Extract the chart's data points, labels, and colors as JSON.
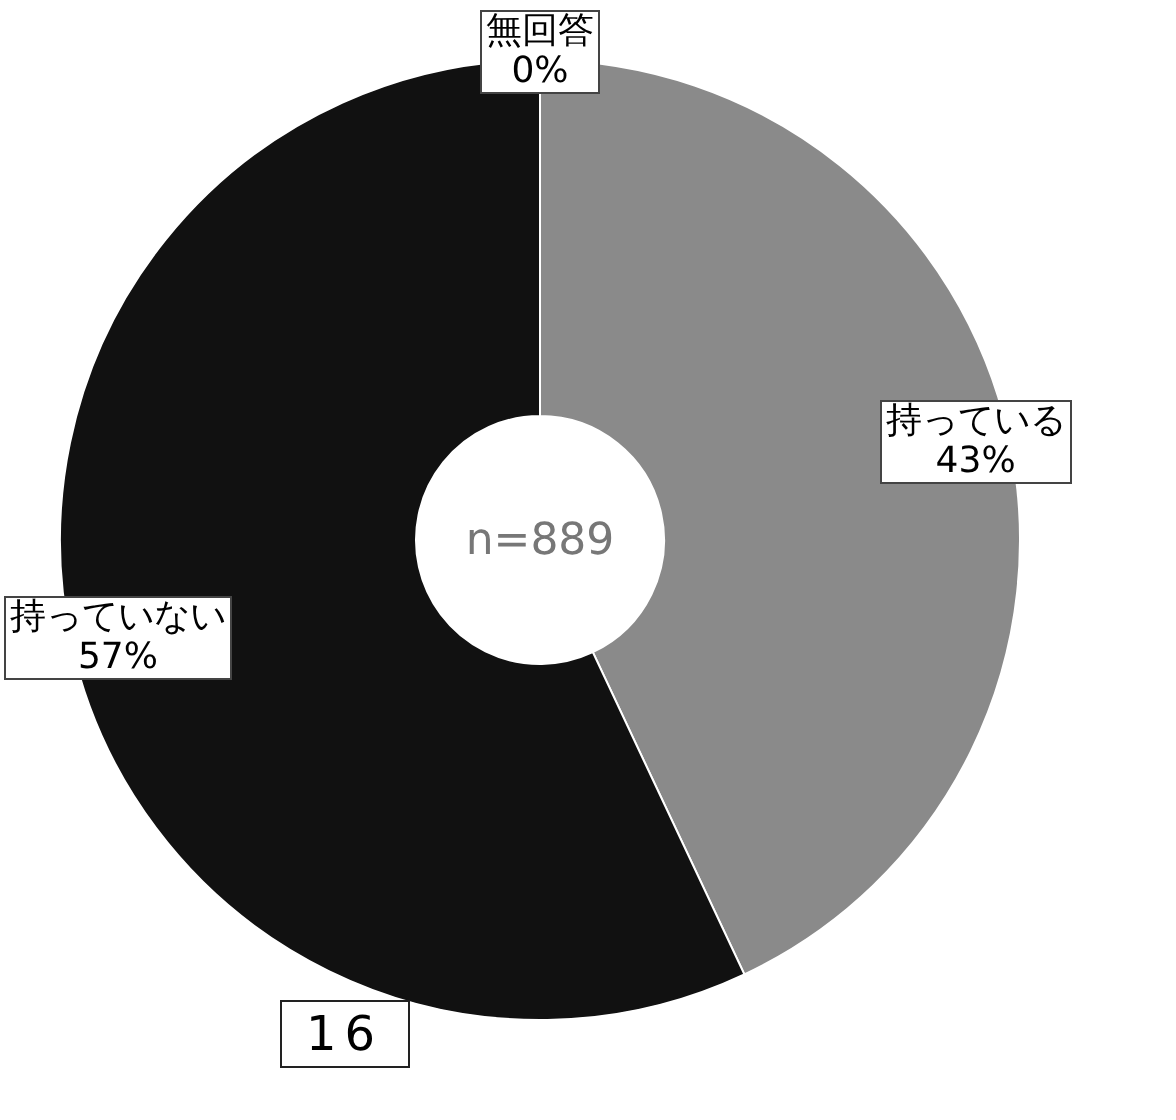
{
  "chart_data": {
    "type": "donut",
    "categories": [
      "持っている",
      "持っていない",
      "無回答"
    ],
    "values": [
      43,
      57,
      0
    ],
    "colors": [
      "#8a8a8a",
      "#111111",
      "#ffffff"
    ],
    "value_labels": [
      "43%",
      "57%",
      "0%"
    ],
    "annotations": [
      "n=889",
      "16"
    ]
  }
}
